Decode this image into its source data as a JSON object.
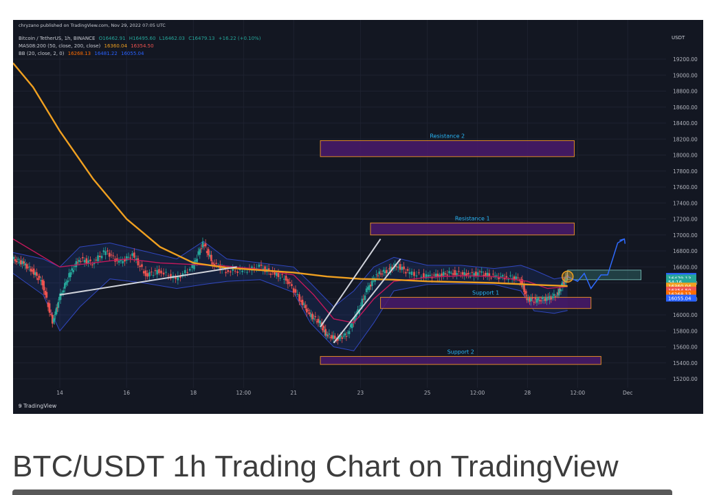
{
  "publisher_line": "chryzano published on TradingView.com, Nov 29, 2022 07:05 UTC",
  "legend": {
    "symbol": "Bitcoin / TetherUS, 1h, BINANCE",
    "ohlc": {
      "o": "O16462.91",
      "h": "H16495.60",
      "l": "L16462.03",
      "c": "C16479.13",
      "chg": "+16.22 (+0.10%)"
    },
    "ma_label": "MAS08:200 (50, close, 200, close)",
    "ma_values": [
      "16360.04",
      "16354.50"
    ],
    "bb_label": "BB (20, close, 2, 0)",
    "bb_values": [
      "16268.13",
      "16481.22",
      "16055.04"
    ]
  },
  "branding": "TradingView",
  "caption": "BTC/USDT 1h Trading Chart on TradingView",
  "colors": {
    "background": "#131722",
    "candle_up": "#26a69a",
    "candle_down": "#ef5350",
    "ma200": "#f0a020",
    "ma50": "#c2185b",
    "bb_fill": "#2962ff",
    "zone_fill": "#4a1a6b",
    "zone_border": "#e08a28",
    "label_text": "#29b6f6",
    "trendline": "#d1d4dc",
    "projection": "#2f6bff"
  },
  "chart_data": {
    "type": "line",
    "title": "Bitcoin / TetherUS, 1h, BINANCE",
    "y_axis_unit": "USDT",
    "ylim": [
      15100,
      19500
    ],
    "y_ticks": [
      19200,
      19000,
      18800,
      18600,
      18400,
      18200,
      18000,
      17800,
      17600,
      17400,
      17200,
      17000,
      16800,
      16600,
      16400,
      16200,
      16000,
      15800,
      15600,
      15400,
      15200
    ],
    "y_tick_labels": [
      "19200.00",
      "19000.00",
      "18800.00",
      "18600.00",
      "18400.00",
      "18200.00",
      "18000.00",
      "17800.00",
      "17600.00",
      "17400.00",
      "17200.00",
      "17000.00",
      "16800.00",
      "16600.00",
      "16400.00",
      "16200.00",
      "16000.00",
      "15800.00",
      "15600.00",
      "15400.00",
      "15200.00"
    ],
    "x_range_days": [
      12.6,
      30.4
    ],
    "x_ticks": [
      {
        "t": 14,
        "label": "14"
      },
      {
        "t": 16,
        "label": "16"
      },
      {
        "t": 18,
        "label": "18"
      },
      {
        "t": 19.5,
        "label": "12:00"
      },
      {
        "t": 21,
        "label": "21"
      },
      {
        "t": 23,
        "label": "23"
      },
      {
        "t": 25,
        "label": "25"
      },
      {
        "t": 26.5,
        "label": "12:00"
      },
      {
        "t": 28,
        "label": "28"
      },
      {
        "t": 29.5,
        "label": "12:00"
      },
      {
        "t": 31,
        "label": "Dec"
      }
    ],
    "price_path": [
      [
        12.6,
        16700
      ],
      [
        12.9,
        16650
      ],
      [
        13.2,
        16550
      ],
      [
        13.5,
        16400
      ],
      [
        13.8,
        15900
      ],
      [
        14.0,
        16200
      ],
      [
        14.3,
        16500
      ],
      [
        14.6,
        16700
      ],
      [
        15.0,
        16650
      ],
      [
        15.4,
        16800
      ],
      [
        15.8,
        16650
      ],
      [
        16.2,
        16750
      ],
      [
        16.6,
        16500
      ],
      [
        17.0,
        16550
      ],
      [
        17.5,
        16450
      ],
      [
        18.0,
        16600
      ],
      [
        18.3,
        16900
      ],
      [
        18.6,
        16650
      ],
      [
        19.0,
        16550
      ],
      [
        19.5,
        16550
      ],
      [
        20.0,
        16600
      ],
      [
        20.4,
        16520
      ],
      [
        20.8,
        16450
      ],
      [
        21.2,
        16200
      ],
      [
        21.5,
        16000
      ],
      [
        21.8,
        15900
      ],
      [
        22.0,
        15750
      ],
      [
        22.3,
        15700
      ],
      [
        22.6,
        15750
      ],
      [
        22.9,
        16000
      ],
      [
        23.2,
        16300
      ],
      [
        23.5,
        16500
      ],
      [
        23.8,
        16550
      ],
      [
        24.1,
        16620
      ],
      [
        24.5,
        16520
      ],
      [
        25.0,
        16480
      ],
      [
        25.4,
        16500
      ],
      [
        25.8,
        16530
      ],
      [
        26.2,
        16500
      ],
      [
        26.6,
        16520
      ],
      [
        27.0,
        16480
      ],
      [
        27.4,
        16470
      ],
      [
        27.8,
        16450
      ],
      [
        28.0,
        16200
      ],
      [
        28.3,
        16180
      ],
      [
        28.6,
        16200
      ],
      [
        28.9,
        16250
      ],
      [
        29.1,
        16420
      ],
      [
        29.2,
        16479
      ]
    ],
    "series": [
      {
        "name": "MA 200",
        "points": [
          [
            12.6,
            19150
          ],
          [
            13.2,
            18850
          ],
          [
            14.0,
            18300
          ],
          [
            15.0,
            17700
          ],
          [
            16.0,
            17200
          ],
          [
            17.0,
            16850
          ],
          [
            18.0,
            16650
          ],
          [
            19.0,
            16590
          ],
          [
            20.0,
            16560
          ],
          [
            21.0,
            16530
          ],
          [
            22.0,
            16480
          ],
          [
            23.0,
            16450
          ],
          [
            24.0,
            16440
          ],
          [
            25.0,
            16420
          ],
          [
            26.0,
            16410
          ],
          [
            27.0,
            16400
          ],
          [
            28.0,
            16380
          ],
          [
            29.2,
            16360
          ]
        ]
      },
      {
        "name": "MA 50",
        "points": [
          [
            12.6,
            16950
          ],
          [
            13.2,
            16800
          ],
          [
            14.0,
            16600
          ],
          [
            15.0,
            16650
          ],
          [
            16.0,
            16700
          ],
          [
            17.0,
            16650
          ],
          [
            18.0,
            16630
          ],
          [
            19.0,
            16610
          ],
          [
            20.0,
            16570
          ],
          [
            21.0,
            16500
          ],
          [
            21.6,
            16250
          ],
          [
            22.2,
            15950
          ],
          [
            22.8,
            15900
          ],
          [
            23.4,
            16200
          ],
          [
            24.0,
            16420
          ],
          [
            25.0,
            16470
          ],
          [
            26.0,
            16490
          ],
          [
            27.0,
            16480
          ],
          [
            28.0,
            16420
          ],
          [
            28.6,
            16330
          ],
          [
            29.2,
            16354
          ]
        ]
      }
    ],
    "bb_upper": [
      [
        12.6,
        16780
      ],
      [
        13.5,
        16700
      ],
      [
        14.0,
        16600
      ],
      [
        14.6,
        16850
      ],
      [
        15.5,
        16900
      ],
      [
        16.5,
        16800
      ],
      [
        17.5,
        16700
      ],
      [
        18.3,
        16920
      ],
      [
        19.0,
        16700
      ],
      [
        20.0,
        16650
      ],
      [
        21.0,
        16600
      ],
      [
        21.5,
        16400
      ],
      [
        22.2,
        16100
      ],
      [
        22.8,
        16300
      ],
      [
        23.4,
        16600
      ],
      [
        24.0,
        16720
      ],
      [
        25.0,
        16620
      ],
      [
        26.0,
        16620
      ],
      [
        27.0,
        16580
      ],
      [
        27.8,
        16620
      ],
      [
        28.2,
        16560
      ],
      [
        28.8,
        16450
      ],
      [
        29.2,
        16481
      ]
    ],
    "bb_lower": [
      [
        12.6,
        16520
      ],
      [
        13.5,
        16250
      ],
      [
        14.0,
        15800
      ],
      [
        14.6,
        16100
      ],
      [
        15.5,
        16450
      ],
      [
        16.5,
        16400
      ],
      [
        17.5,
        16330
      ],
      [
        18.3,
        16380
      ],
      [
        19.0,
        16420
      ],
      [
        20.0,
        16440
      ],
      [
        21.0,
        16280
      ],
      [
        21.5,
        15900
      ],
      [
        22.2,
        15600
      ],
      [
        22.8,
        15550
      ],
      [
        23.4,
        15900
      ],
      [
        24.0,
        16300
      ],
      [
        25.0,
        16380
      ],
      [
        26.0,
        16390
      ],
      [
        27.0,
        16380
      ],
      [
        27.8,
        16300
      ],
      [
        28.2,
        16050
      ],
      [
        28.8,
        16020
      ],
      [
        29.2,
        16055
      ]
    ],
    "zones": [
      {
        "label": "Resistance 2",
        "t0": 21.8,
        "t1": 29.4,
        "p_low": 17980,
        "p_high": 18180
      },
      {
        "label": "Resistance 1",
        "t0": 23.3,
        "t1": 29.4,
        "p_low": 17000,
        "p_high": 17150
      },
      {
        "label": "Support 1",
        "t0": 23.6,
        "t1": 29.9,
        "p_low": 16080,
        "p_high": 16220
      },
      {
        "label": "Support 2",
        "t0": 21.8,
        "t1": 30.2,
        "p_low": 15380,
        "p_high": 15480
      }
    ],
    "trendlines": [
      [
        [
          14.0,
          16250
        ],
        [
          19.3,
          16600
        ]
      ],
      [
        [
          21.8,
          15850
        ],
        [
          23.6,
          16950
        ]
      ],
      [
        [
          22.2,
          15650
        ],
        [
          24.2,
          16700
        ]
      ]
    ],
    "projection": [
      [
        29.2,
        16479
      ],
      [
        29.5,
        16420
      ],
      [
        29.7,
        16520
      ],
      [
        29.9,
        16330
      ],
      [
        30.2,
        16500
      ],
      [
        30.4,
        16500
      ],
      [
        30.7,
        16900
      ],
      [
        30.9,
        16950
      ]
    ],
    "price_labels": [
      {
        "text": "16481.22",
        "price": 16481.22,
        "color": "#2962ff"
      },
      {
        "text": "16479.13",
        "price": 16462,
        "color": "#26a69a"
      },
      {
        "text": "54:16",
        "price": 16412,
        "color": "#26a69a"
      },
      {
        "text": "16360.04",
        "price": 16360.04,
        "color": "#f0a020"
      },
      {
        "text": "16354.50",
        "price": 16310,
        "color": "#ef5350"
      },
      {
        "text": "16268.13",
        "price": 16262,
        "color": "#ff6d00"
      },
      {
        "text": "16055.04",
        "price": 16210,
        "color": "#2962ff"
      }
    ]
  }
}
